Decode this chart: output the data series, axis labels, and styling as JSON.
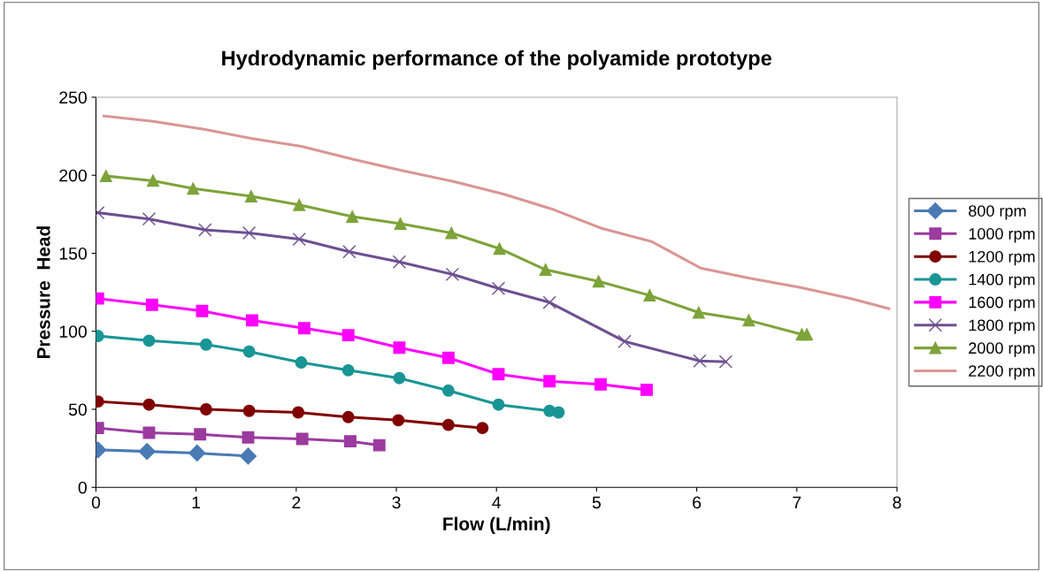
{
  "chart_data": {
    "type": "line",
    "title": "Hydrodynamic performance of the polyamide prototype",
    "xlabel": "Flow (L/min)",
    "ylabel": "Pressure  Head",
    "xlim": [
      0,
      8
    ],
    "xticks": [
      0,
      1,
      2,
      3,
      4,
      5,
      6,
      7,
      8
    ],
    "ylim": [
      0,
      250
    ],
    "yticks": [
      0,
      50,
      100,
      150,
      200,
      250
    ],
    "grid": false,
    "legend": "right",
    "series": [
      {
        "name": "800 rpm",
        "color": "#4a7ab5",
        "marker": "diamond",
        "x": [
          0.02,
          0.51,
          1.01,
          1.52
        ],
        "values": [
          24,
          23,
          22,
          20
        ]
      },
      {
        "name": "1000 rpm",
        "color": "#9b3a9f",
        "marker": "square",
        "x": [
          0.02,
          0.53,
          1.04,
          1.52,
          2.06,
          2.54,
          2.83
        ],
        "values": [
          38,
          35,
          34,
          32,
          31,
          29.5,
          27
        ]
      },
      {
        "name": "1200 rpm",
        "color": "#800000",
        "marker": "circle",
        "x": [
          0.02,
          0.53,
          1.1,
          1.53,
          2.02,
          2.52,
          3.02,
          3.52,
          3.86
        ],
        "values": [
          55,
          53,
          50,
          49,
          48,
          45,
          43,
          40,
          38
        ]
      },
      {
        "name": "1400 rpm",
        "color": "#1a9595",
        "marker": "circle",
        "x": [
          0.02,
          0.53,
          1.1,
          1.53,
          2.05,
          2.52,
          3.03,
          3.52,
          4.02,
          4.53,
          4.62
        ],
        "values": [
          97,
          94,
          91.5,
          87,
          80,
          75,
          70,
          62,
          53,
          49,
          48
        ]
      },
      {
        "name": "1600 rpm",
        "color": "#ff00ff",
        "marker": "square",
        "x": [
          0.02,
          0.56,
          1.06,
          1.56,
          2.08,
          2.52,
          3.03,
          3.52,
          4.02,
          4.53,
          5.04,
          5.5
        ],
        "values": [
          121,
          117,
          113,
          107,
          102,
          97.5,
          89.5,
          83,
          72.5,
          68,
          66,
          62.5
        ]
      },
      {
        "name": "1800 rpm",
        "color": "#6e4f91",
        "marker": "cross",
        "x": [
          0.02,
          0.53,
          1.09,
          1.53,
          2.03,
          2.53,
          3.03,
          3.56,
          4.02,
          4.53,
          5.28,
          6.03,
          6.29
        ],
        "values": [
          176,
          172,
          165,
          163,
          159,
          151,
          144.5,
          136.5,
          127.5,
          118.5,
          93.5,
          81,
          80.5
        ]
      },
      {
        "name": "2000 rpm",
        "color": "#7ea33a",
        "marker": "triangle",
        "x": [
          0.1,
          0.57,
          0.97,
          1.55,
          2.03,
          2.56,
          3.04,
          3.55,
          4.03,
          4.49,
          5.02,
          5.53,
          6.02,
          6.52,
          7.05,
          7.1
        ],
        "values": [
          199.5,
          196.5,
          191.5,
          186.5,
          181,
          173.5,
          169,
          163,
          153,
          139.5,
          132,
          123,
          112,
          107,
          98,
          98
        ]
      },
      {
        "name": "2200 rpm",
        "color": "#d99694",
        "marker": "none",
        "x": [
          0.08,
          0.57,
          1.08,
          1.56,
          2.05,
          2.58,
          3.06,
          3.57,
          4.07,
          4.57,
          5.05,
          5.55,
          6.04,
          6.53,
          7.04,
          7.54,
          7.92
        ],
        "values": [
          238,
          234.5,
          229.5,
          223.5,
          218.5,
          210,
          203,
          196,
          188,
          178,
          166,
          157.5,
          140.5,
          134,
          128,
          121,
          114.5
        ]
      }
    ]
  }
}
